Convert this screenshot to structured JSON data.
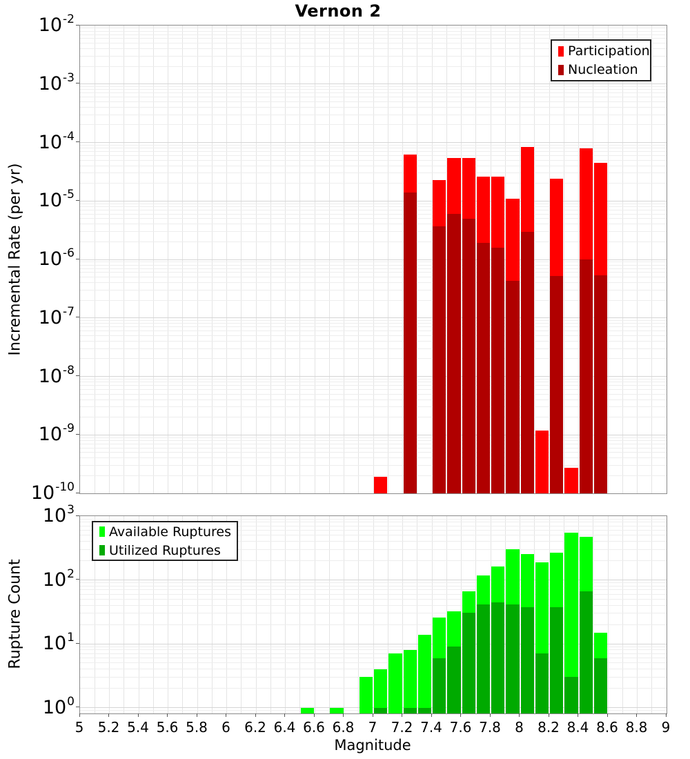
{
  "title": "Vernon 2",
  "colors": {
    "participation": "#ff0000",
    "nucleation": "#b00000",
    "available": "#00ff00",
    "utilized": "#00aa00",
    "grid_minor": "#ededed",
    "grid_major": "#d5d5d5",
    "grid_vertical": "#e4e4e4",
    "axis_border": "#8a8a8a"
  },
  "top_chart": {
    "ylabel": "Incremental Rate (per yr)",
    "y_tick_base": "10",
    "y_tick_exponents": [
      "-2",
      "-3",
      "-4",
      "-5",
      "-6",
      "-7",
      "-8",
      "-9",
      "-10"
    ],
    "legend": [
      {
        "label": "Participation",
        "color": "#ff0000"
      },
      {
        "label": "Nucleation",
        "color": "#b00000"
      }
    ]
  },
  "bottom_chart": {
    "ylabel": "Rupture Count",
    "y_tick_base": "10",
    "y_tick_exponents": [
      "3",
      "2",
      "1",
      "0"
    ],
    "legend": [
      {
        "label": "Available Ruptures",
        "color": "#00ff00"
      },
      {
        "label": "Utilized Ruptures",
        "color": "#00aa00"
      }
    ]
  },
  "x_axis": {
    "label": "Magnitude",
    "tick_values": [
      5,
      5.2,
      5.4,
      5.6,
      5.8,
      6,
      6.2,
      6.4,
      6.6,
      6.8,
      7,
      7.2,
      7.4,
      7.6,
      7.8,
      8,
      8.2,
      8.4,
      8.6,
      8.8,
      9
    ],
    "tick_labels": [
      "5",
      "5.2",
      "5.4",
      "5.6",
      "5.8",
      "6",
      "6.2",
      "6.4",
      "6.6",
      "6.8",
      "7",
      "7.2",
      "7.4",
      "7.6",
      "7.8",
      "8",
      "8.2",
      "8.4",
      "8.6",
      "8.8",
      "9"
    ]
  },
  "chart_data": [
    {
      "type": "bar",
      "subplot": "top",
      "title": "Vernon 2",
      "xlabel": "Magnitude",
      "ylabel": "Incremental Rate (per yr)",
      "y_scale": "log",
      "x_range": [
        5,
        9
      ],
      "y_range": [
        1e-10,
        0.01
      ],
      "bin_width": 0.1,
      "grid": true,
      "legend_position": "top-right",
      "categories": [
        7.05,
        7.25,
        7.45,
        7.55,
        7.65,
        7.75,
        7.85,
        7.95,
        8.05,
        8.15,
        8.25,
        8.35,
        8.45,
        8.55
      ],
      "series": [
        {
          "name": "Participation",
          "color": "#ff0000",
          "values": [
            1.9e-10,
            6.3e-05,
            2.3e-05,
            5.5e-05,
            5.5e-05,
            2.6e-05,
            2.6e-05,
            1.1e-05,
            8.3e-05,
            1.2e-09,
            2.4e-05,
            2.7e-10,
            8e-05,
            4.5e-05
          ]
        },
        {
          "name": "Nucleation",
          "color": "#b00000",
          "values": [
            0,
            1.4e-05,
            3.7e-06,
            6e-06,
            5e-06,
            1.9e-06,
            1.6e-06,
            4.3e-07,
            3e-06,
            0,
            5.2e-07,
            0,
            1e-06,
            5.3e-07
          ]
        }
      ]
    },
    {
      "type": "bar",
      "subplot": "bottom",
      "xlabel": "Magnitude",
      "ylabel": "Rupture Count",
      "y_scale": "log",
      "x_range": [
        5,
        9
      ],
      "y_range": [
        0.81,
        1000
      ],
      "bin_width": 0.1,
      "grid": true,
      "legend_position": "top-left",
      "categories": [
        6.55,
        6.75,
        6.95,
        7.05,
        7.15,
        7.25,
        7.35,
        7.45,
        7.55,
        7.65,
        7.75,
        7.85,
        7.95,
        8.05,
        8.15,
        8.25,
        8.35,
        8.45,
        8.55
      ],
      "series": [
        {
          "name": "Available Ruptures",
          "color": "#00ff00",
          "values": [
            1,
            1,
            3,
            4,
            7,
            8,
            14,
            26,
            32,
            67,
            118,
            162,
            300,
            253,
            187,
            270,
            550,
            478,
            15
          ]
        },
        {
          "name": "Utilized Ruptures",
          "color": "#00aa00",
          "values": [
            0,
            0,
            0,
            1,
            0,
            1,
            1,
            6,
            9,
            31,
            41,
            45,
            41,
            37,
            7,
            37,
            3,
            66,
            6
          ]
        }
      ]
    }
  ]
}
